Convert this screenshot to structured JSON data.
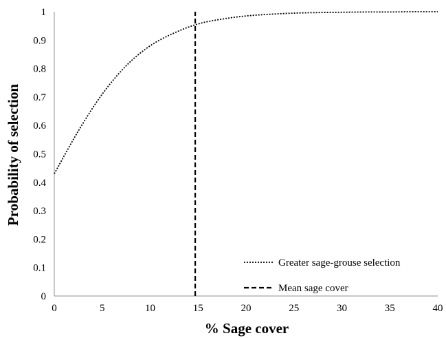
{
  "chart_data": {
    "type": "line",
    "xlabel": "% Sage cover",
    "ylabel": "Probability of selection",
    "xlim": [
      0,
      40
    ],
    "ylim": [
      0,
      1
    ],
    "x_ticks": [
      0,
      5,
      10,
      15,
      20,
      25,
      30,
      35,
      40
    ],
    "y_ticks": [
      0,
      0.1,
      0.2,
      0.3,
      0.4,
      0.5,
      0.6,
      0.7,
      0.8,
      0.9,
      1
    ],
    "grid": false,
    "legend_position": "bottom-right",
    "series": [
      {
        "name": "Greater sage-grouse selection",
        "style": "dotted",
        "color": "#000000",
        "x": [
          0,
          2.5,
          5,
          7.5,
          10,
          12.5,
          15,
          17.5,
          20,
          22.5,
          25,
          27.5,
          30,
          32.5,
          35,
          37.5,
          40
        ],
        "y": [
          0.43,
          0.58,
          0.71,
          0.81,
          0.88,
          0.925,
          0.957,
          0.974,
          0.985,
          0.991,
          0.995,
          0.997,
          0.998,
          0.999,
          0.999,
          1.0,
          1.0
        ]
      },
      {
        "name": "Mean sage cover",
        "style": "dashed",
        "color": "#000000",
        "x": [
          14.7,
          14.7
        ],
        "y": [
          0,
          1
        ]
      }
    ]
  }
}
